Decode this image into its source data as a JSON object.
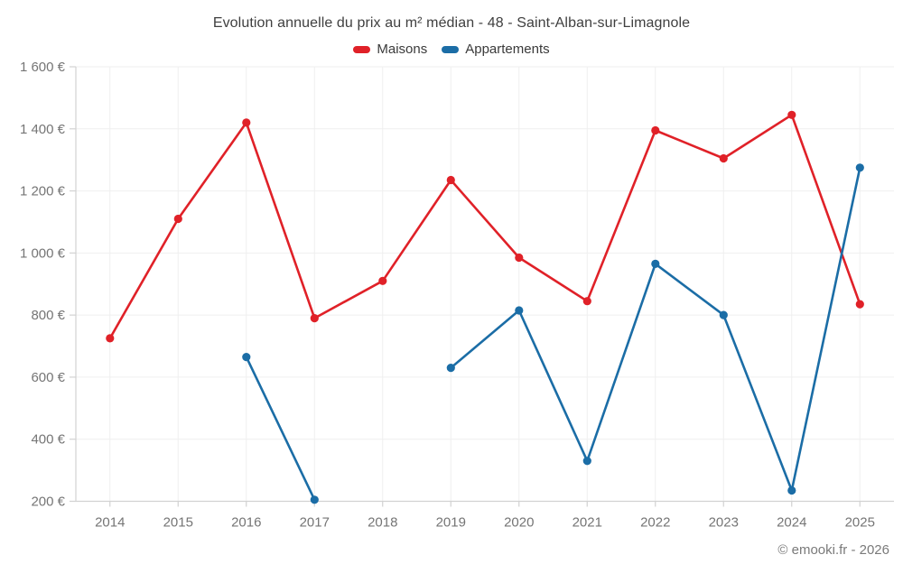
{
  "title": "Evolution annuelle du prix au m² médian - 48 - Saint-Alban-sur-Limagnole",
  "footer": "© emooki.fr - 2026",
  "legend": {
    "items": [
      {
        "label": "Maisons",
        "color": "#e02128"
      },
      {
        "label": "Appartements",
        "color": "#1b6da6"
      }
    ]
  },
  "colors": {
    "maisons": "#e02128",
    "appartements": "#1b6da6",
    "gridline": "#efefef",
    "axis_line": "#d2d2d2",
    "tick_label": "#757575",
    "title_text": "#3f3f3f"
  },
  "chart_data": {
    "type": "line",
    "title": "Evolution annuelle du prix au m² médian - 48 - Saint-Alban-sur-Limagnole",
    "categories": [
      "2014",
      "2015",
      "2016",
      "2017",
      "2018",
      "2019",
      "2020",
      "2021",
      "2022",
      "2023",
      "2024",
      "2025"
    ],
    "series": [
      {
        "name": "Maisons",
        "color": "#e02128",
        "values": [
          725,
          1110,
          1420,
          790,
          910,
          1235,
          985,
          845,
          1395,
          1305,
          1445,
          835
        ]
      },
      {
        "name": "Appartements",
        "color": "#1b6da6",
        "values": [
          null,
          null,
          665,
          205,
          null,
          630,
          815,
          330,
          965,
          800,
          235,
          1275
        ]
      }
    ],
    "xlabel": "",
    "ylabel": "",
    "ylim": [
      200,
      1600
    ],
    "y_tick_step": 200,
    "y_tick_values": [
      200,
      400,
      600,
      800,
      1000,
      1200,
      1400,
      1600
    ],
    "y_tick_labels": [
      "200 €",
      "400 €",
      "600 €",
      "800 €",
      "1 000 €",
      "1 200 €",
      "1 400 €",
      "1 600 €"
    ],
    "grid": true,
    "legend_position": "top"
  }
}
